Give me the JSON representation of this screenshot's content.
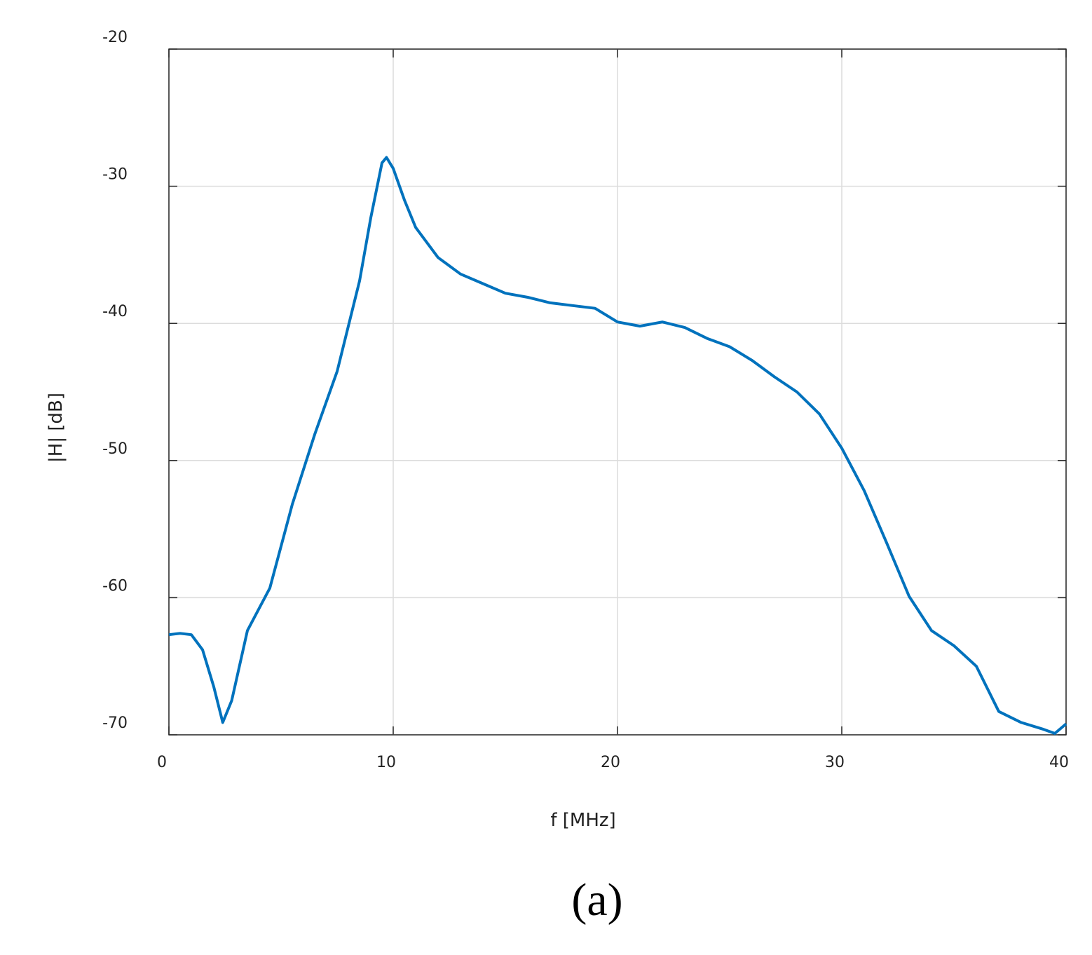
{
  "chart_data": {
    "type": "line",
    "xlabel": "f [MHz]",
    "ylabel": "|H| [dB]",
    "caption": "(a)",
    "x": [
      0,
      0.5,
      1,
      1.5,
      2,
      2.4,
      2.8,
      3.5,
      4.5,
      5.5,
      6.5,
      7.5,
      8.5,
      9,
      9.5,
      9.7,
      10,
      10.5,
      11,
      12,
      13,
      14,
      15,
      16,
      17,
      18,
      19,
      20,
      21,
      22,
      23,
      24,
      25,
      26,
      27,
      28,
      29,
      30,
      31,
      32,
      33,
      34,
      35,
      36,
      37,
      38,
      39,
      39.5,
      40
    ],
    "series": [
      {
        "color": "#0072bd",
        "values": [
          -62.7,
          -62.6,
          -62.7,
          -63.8,
          -66.5,
          -69.1,
          -67.5,
          -62.4,
          -59.3,
          -53.2,
          -48.1,
          -43.5,
          -36.9,
          -32.3,
          -28.3,
          -27.9,
          -28.7,
          -31.0,
          -33.0,
          -35.2,
          -36.4,
          -37.1,
          -37.8,
          -38.1,
          -38.5,
          -38.7,
          -38.9,
          -39.9,
          -40.2,
          -39.9,
          -40.3,
          -41.1,
          -41.7,
          -42.7,
          -43.9,
          -45.0,
          -46.6,
          -49.1,
          -52.2,
          -56.0,
          -59.9,
          -62.4,
          -63.5,
          -65.0,
          -68.3,
          -69.1,
          -69.6,
          -69.9,
          -69.2
        ]
      }
    ],
    "xlim": [
      0,
      40
    ],
    "xticks": [
      0,
      10,
      20,
      30,
      40
    ],
    "ylim": [
      -70,
      -20
    ],
    "yticks": [
      -70,
      -60,
      -50,
      -40,
      -30,
      -20
    ],
    "grid": true
  }
}
